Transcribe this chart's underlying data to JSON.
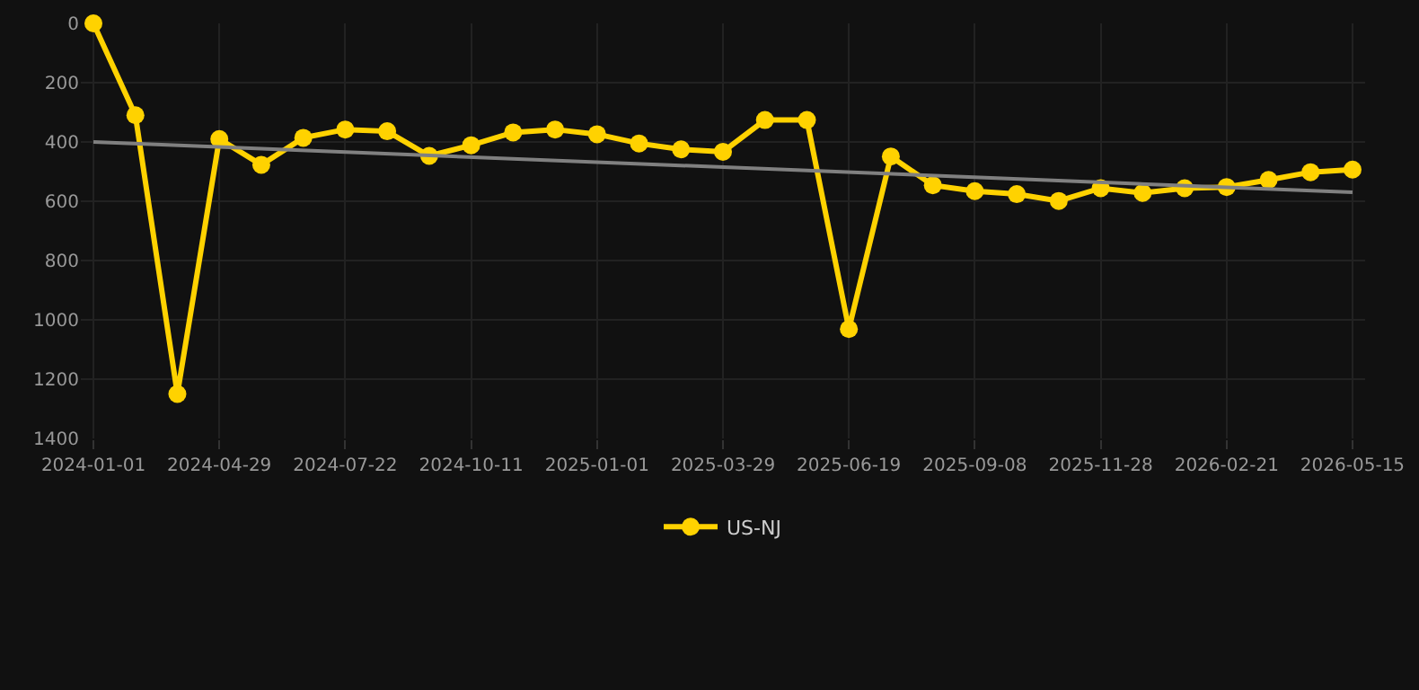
{
  "chart_data": {
    "type": "line",
    "categories": [
      "2024-01-01",
      null,
      null,
      "2024-04-29",
      null,
      null,
      "2024-07-22",
      null,
      null,
      "2024-10-11",
      null,
      null,
      "2025-01-01",
      null,
      null,
      "2025-03-29",
      null,
      null,
      "2025-06-19",
      null,
      null,
      "2025-09-08",
      null,
      null,
      "2025-11-28",
      null,
      null,
      "2026-02-21",
      null,
      null,
      "2026-05-15"
    ],
    "series": [
      {
        "name": "US-NJ",
        "color": "#ffd200",
        "values": [
          0,
          310,
          1250,
          390,
          477,
          386,
          358,
          364,
          447,
          411,
          368,
          358,
          374,
          405,
          425,
          433,
          326,
          326,
          1031,
          449,
          546,
          566,
          576,
          599,
          556,
          572,
          556,
          552,
          528,
          502,
          493
        ]
      },
      {
        "type": "line",
        "color": "#808080",
        "values": [
          400,
          null,
          null,
          null,
          null,
          null,
          null,
          null,
          null,
          null,
          null,
          null,
          null,
          null,
          null,
          null,
          null,
          null,
          null,
          null,
          null,
          null,
          null,
          null,
          null,
          null,
          null,
          null,
          null,
          null,
          570
        ],
        "marker": "none"
      }
    ],
    "ylim": [
      1400,
      0
    ],
    "yticks": [
      0,
      200,
      400,
      600,
      800,
      1000,
      1200,
      1400
    ],
    "grid": true,
    "legend": "bottom",
    "marker": "circle",
    "line_style": "solid"
  }
}
